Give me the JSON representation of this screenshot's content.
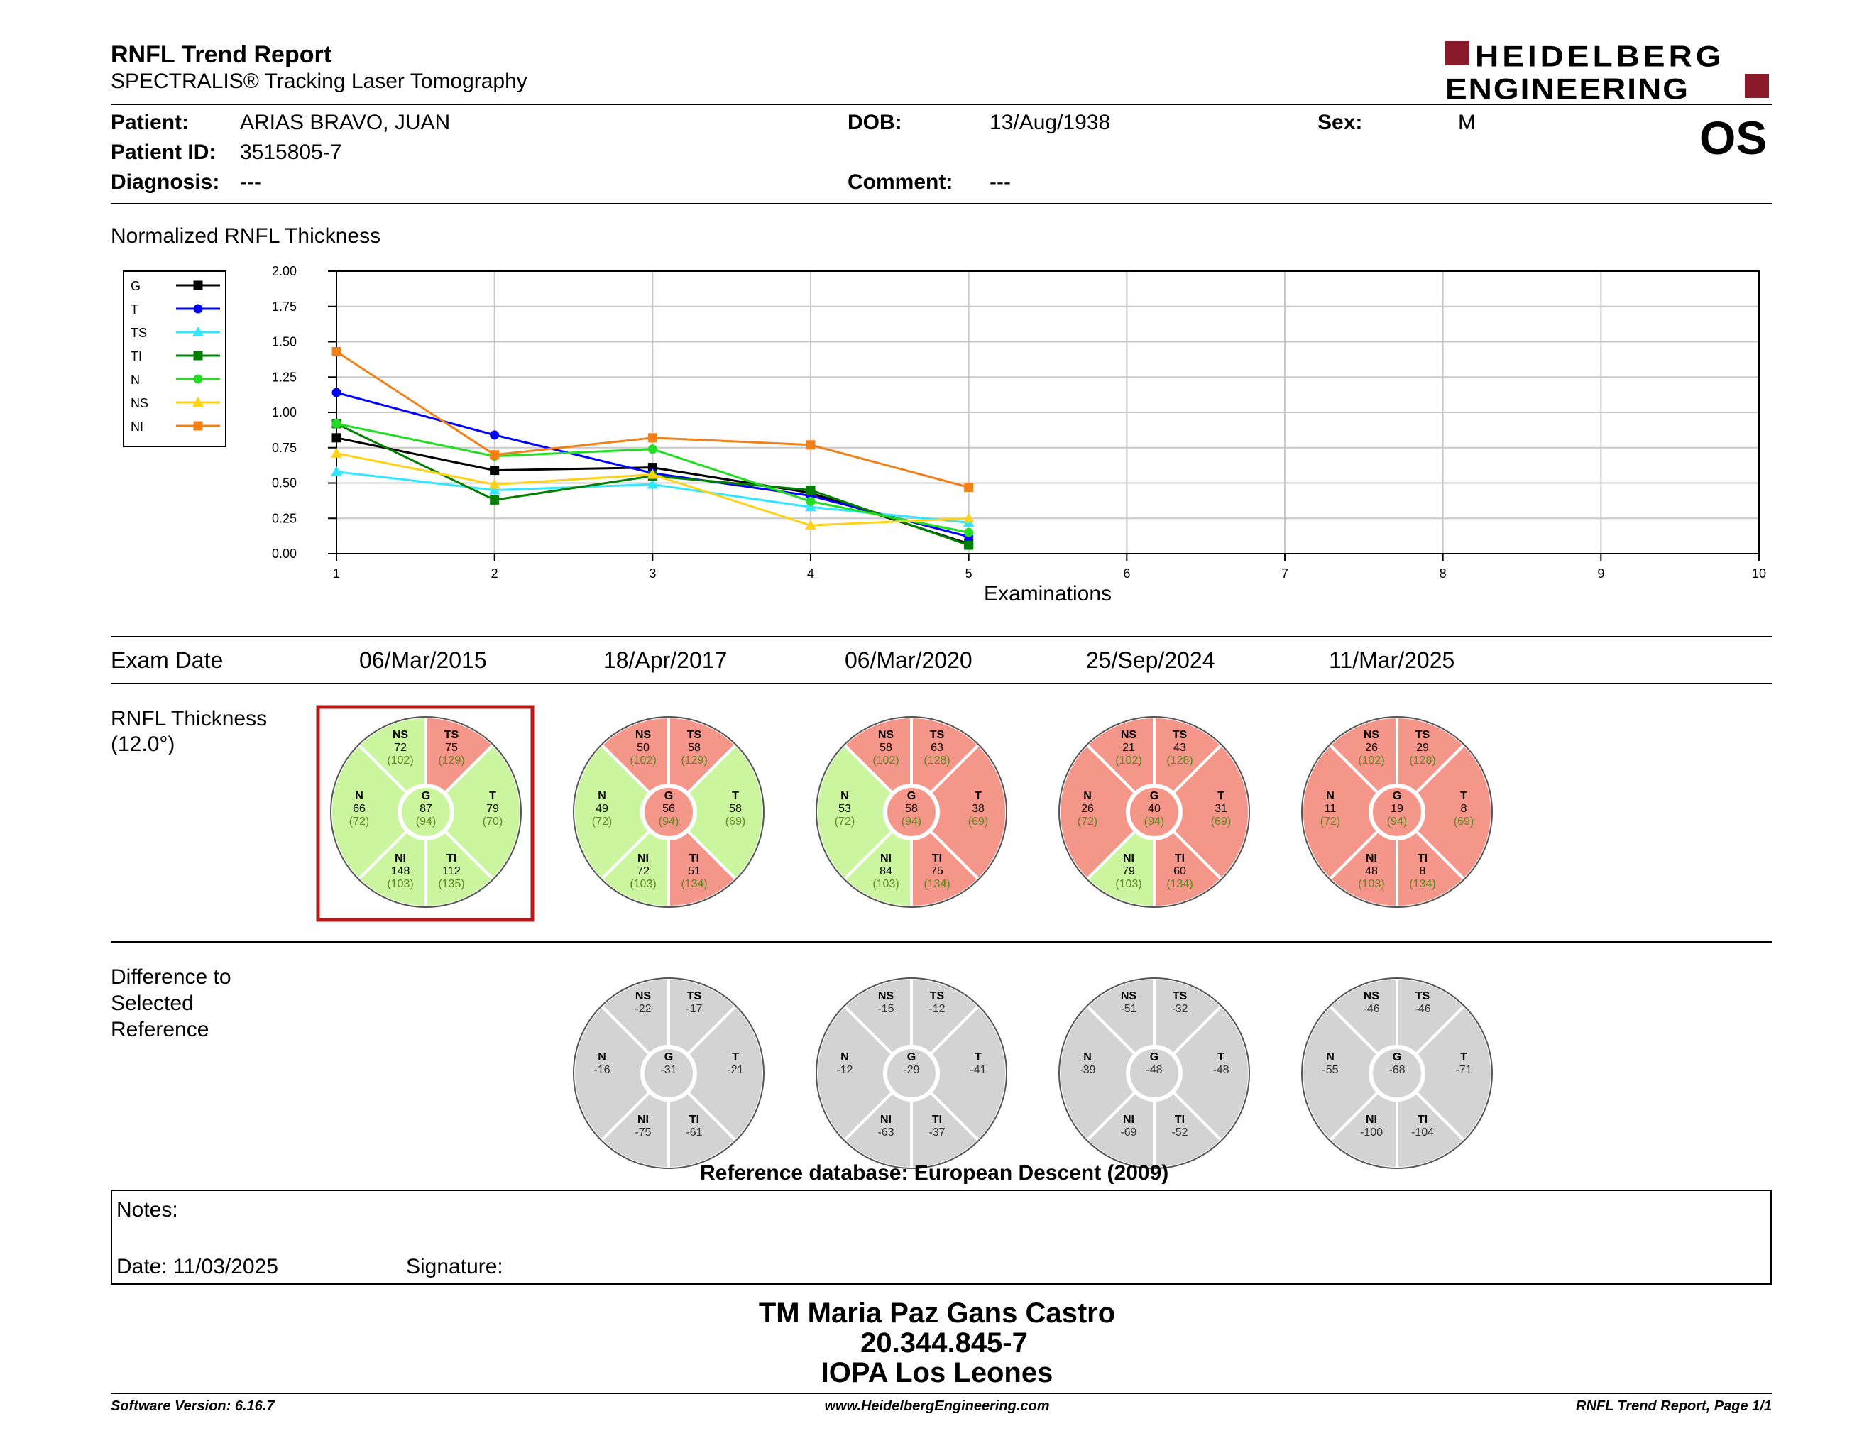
{
  "header": {
    "title": "RNFL Trend Report",
    "subtitle": "SPECTRALIS® Tracking Laser Tomography",
    "brand_line1": "HEIDELBERG",
    "brand_line2": "ENGINEERING",
    "eye": "OS"
  },
  "patient": {
    "patient_label": "Patient:",
    "patient_value": "ARIAS BRAVO, JUAN",
    "id_label": "Patient ID:",
    "id_value": "3515805-7",
    "diagnosis_label": "Diagnosis:",
    "diagnosis_value": "---",
    "dob_label": "DOB:",
    "dob_value": "13/Aug/1938",
    "comment_label": "Comment:",
    "comment_value": "---",
    "sex_label": "Sex:",
    "sex_value": "M"
  },
  "chart_data": {
    "type": "line",
    "title": "Normalized RNFL Thickness",
    "xlabel": "Examinations",
    "ylabel": "",
    "x": [
      1,
      2,
      3,
      4,
      5
    ],
    "xlim": [
      1,
      10
    ],
    "ylim": [
      0,
      2
    ],
    "xticks": [
      "1",
      "2",
      "3",
      "4",
      "5",
      "6",
      "7",
      "8",
      "9",
      "10"
    ],
    "yticks": [
      "0.00",
      "0.25",
      "0.50",
      "0.75",
      "1.00",
      "1.25",
      "1.50",
      "1.75",
      "2.00"
    ],
    "grid": true,
    "legend_position": "top-left",
    "series": [
      {
        "name": "G",
        "color": "#000000",
        "marker": "square",
        "values": [
          0.82,
          0.59,
          0.61,
          0.43,
          0.07
        ]
      },
      {
        "name": "T",
        "color": "#0000ff",
        "marker": "circle",
        "values": [
          1.14,
          0.84,
          0.57,
          0.41,
          0.12
        ]
      },
      {
        "name": "TS",
        "color": "#33e6ff",
        "marker": "triangle",
        "values": [
          0.58,
          0.45,
          0.49,
          0.33,
          0.22
        ]
      },
      {
        "name": "TI",
        "color": "#008000",
        "marker": "square",
        "values": [
          0.92,
          0.38,
          0.55,
          0.45,
          0.06
        ]
      },
      {
        "name": "N",
        "color": "#22dd22",
        "marker": "circle",
        "values": [
          0.92,
          0.69,
          0.74,
          0.37,
          0.15
        ]
      },
      {
        "name": "NS",
        "color": "#ffd21a",
        "marker": "triangle",
        "values": [
          0.71,
          0.49,
          0.56,
          0.2,
          0.25
        ]
      },
      {
        "name": "NI",
        "color": "#f08018",
        "marker": "square",
        "values": [
          1.43,
          0.7,
          0.82,
          0.77,
          0.47
        ]
      }
    ]
  },
  "exams": {
    "exam_date_label": "Exam Date",
    "thickness_label_1": "RNFL Thickness",
    "thickness_label_2": "(12.0°)",
    "diff_label_1": "Difference to",
    "diff_label_2": "Selected",
    "diff_label_3": "Reference",
    "dates": [
      "06/Mar/2015",
      "18/Apr/2017",
      "06/Mar/2020",
      "25/Sep/2024",
      "11/Mar/2025"
    ],
    "selected_index": 0,
    "reference_db": "Reference database: European Descent (2009)"
  },
  "sector_names": {
    "NS": "NS",
    "TS": "TS",
    "N": "N",
    "G": "G",
    "T": "T",
    "NI": "NI",
    "TI": "TI"
  },
  "colors": {
    "normal": "#ccf5a0",
    "outside": "#f4968a",
    "diff": "#d3d3d3",
    "reference_text": "#5a8a1a",
    "selected_frame": "#b31b1b",
    "brand": "#8b1a2b"
  },
  "thickness": [
    {
      "NS": {
        "v": "72",
        "r": "(102)",
        "s": "normal"
      },
      "TS": {
        "v": "75",
        "r": "(129)",
        "s": "outside"
      },
      "N": {
        "v": "66",
        "r": "(72)",
        "s": "normal"
      },
      "G": {
        "v": "87",
        "r": "(94)",
        "s": "normal"
      },
      "T": {
        "v": "79",
        "r": "(70)",
        "s": "normal"
      },
      "NI": {
        "v": "148",
        "r": "(103)",
        "s": "normal"
      },
      "TI": {
        "v": "112",
        "r": "(135)",
        "s": "normal"
      }
    },
    {
      "NS": {
        "v": "50",
        "r": "(102)",
        "s": "outside"
      },
      "TS": {
        "v": "58",
        "r": "(129)",
        "s": "outside"
      },
      "N": {
        "v": "49",
        "r": "(72)",
        "s": "normal"
      },
      "G": {
        "v": "56",
        "r": "(94)",
        "s": "outside"
      },
      "T": {
        "v": "58",
        "r": "(69)",
        "s": "normal"
      },
      "NI": {
        "v": "72",
        "r": "(103)",
        "s": "normal"
      },
      "TI": {
        "v": "51",
        "r": "(134)",
        "s": "outside"
      }
    },
    {
      "NS": {
        "v": "58",
        "r": "(102)",
        "s": "outside"
      },
      "TS": {
        "v": "63",
        "r": "(128)",
        "s": "outside"
      },
      "N": {
        "v": "53",
        "r": "(72)",
        "s": "normal"
      },
      "G": {
        "v": "58",
        "r": "(94)",
        "s": "outside"
      },
      "T": {
        "v": "38",
        "r": "(69)",
        "s": "outside"
      },
      "NI": {
        "v": "84",
        "r": "(103)",
        "s": "normal"
      },
      "TI": {
        "v": "75",
        "r": "(134)",
        "s": "outside"
      }
    },
    {
      "NS": {
        "v": "21",
        "r": "(102)",
        "s": "outside"
      },
      "TS": {
        "v": "43",
        "r": "(128)",
        "s": "outside"
      },
      "N": {
        "v": "26",
        "r": "(72)",
        "s": "outside"
      },
      "G": {
        "v": "40",
        "r": "(94)",
        "s": "outside"
      },
      "T": {
        "v": "31",
        "r": "(69)",
        "s": "outside"
      },
      "NI": {
        "v": "79",
        "r": "(103)",
        "s": "normal"
      },
      "TI": {
        "v": "60",
        "r": "(134)",
        "s": "outside"
      }
    },
    {
      "NS": {
        "v": "26",
        "r": "(102)",
        "s": "outside"
      },
      "TS": {
        "v": "29",
        "r": "(128)",
        "s": "outside"
      },
      "N": {
        "v": "11",
        "r": "(72)",
        "s": "outside"
      },
      "G": {
        "v": "19",
        "r": "(94)",
        "s": "outside"
      },
      "T": {
        "v": "8",
        "r": "(69)",
        "s": "outside"
      },
      "NI": {
        "v": "48",
        "r": "(103)",
        "s": "outside"
      },
      "TI": {
        "v": "8",
        "r": "(134)",
        "s": "outside"
      }
    }
  ],
  "difference": [
    null,
    {
      "NS": "-22",
      "TS": "-17",
      "N": "-16",
      "G": "-31",
      "T": "-21",
      "NI": "-75",
      "TI": "-61"
    },
    {
      "NS": "-15",
      "TS": "-12",
      "N": "-12",
      "G": "-29",
      "T": "-41",
      "NI": "-63",
      "TI": "-37"
    },
    {
      "NS": "-51",
      "TS": "-32",
      "N": "-39",
      "G": "-48",
      "T": "-48",
      "NI": "-69",
      "TI": "-52"
    },
    {
      "NS": "-46",
      "TS": "-46",
      "N": "-55",
      "G": "-68",
      "T": "-71",
      "NI": "-100",
      "TI": "-104"
    }
  ],
  "notes": {
    "notes_label": "Notes:",
    "date_label": "Date: 11/03/2025",
    "signature_label": "Signature:"
  },
  "signoff": {
    "line1": "TM Maria Paz Gans Castro",
    "line2": "20.344.845-7",
    "line3": "IOPA Los Leones"
  },
  "footer": {
    "left": "Software Version: 6.16.7",
    "center": "www.HeidelbergEngineering.com",
    "right": "RNFL Trend Report, Page 1/1"
  }
}
